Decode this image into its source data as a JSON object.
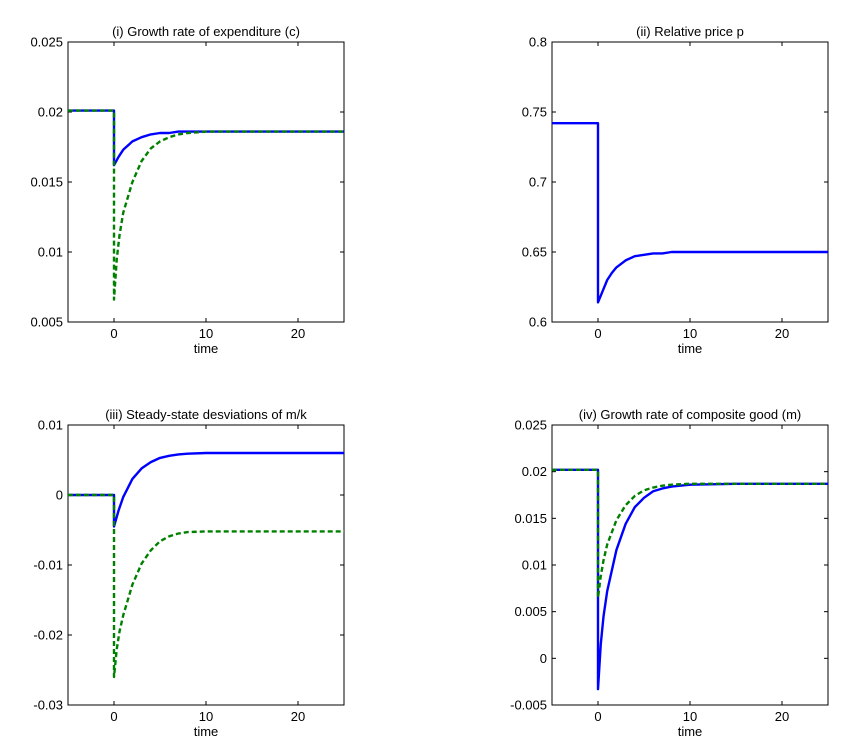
{
  "chart_data": [
    {
      "type": "line",
      "title": "(i) Growth rate of expenditure (c)",
      "xlabel": "time",
      "ylabel": "",
      "xlim": [
        -5,
        25
      ],
      "ylim": [
        0.005,
        0.025
      ],
      "xticks": [
        0,
        10,
        20
      ],
      "yticks": [
        0.005,
        0.01,
        0.015,
        0.02,
        0.025
      ],
      "ytick_labels": [
        "0.005",
        "0.01",
        "0.015",
        "0.02",
        "0.025"
      ],
      "legend": "none",
      "grid": false,
      "series": [
        {
          "color": "#0000ff",
          "style": "solid",
          "x": [
            -5,
            0,
            0,
            0.5,
            1,
            2,
            3,
            4,
            5,
            6,
            7,
            8,
            10,
            15,
            20,
            25
          ],
          "y": [
            0.0201,
            0.0201,
            0.0162,
            0.0168,
            0.0173,
            0.0179,
            0.0182,
            0.0184,
            0.0185,
            0.0185,
            0.0186,
            0.0186,
            0.0186,
            0.0186,
            0.0186,
            0.0186
          ]
        },
        {
          "color": "#008000",
          "style": "dashed",
          "x": [
            -5,
            0,
            0,
            0.3,
            0.6,
            1,
            2,
            3,
            4,
            5,
            6,
            7,
            8,
            10,
            15,
            20,
            25
          ],
          "y": [
            0.0201,
            0.0201,
            0.0066,
            0.0095,
            0.0112,
            0.0128,
            0.015,
            0.0165,
            0.0174,
            0.0179,
            0.0182,
            0.0184,
            0.0185,
            0.0186,
            0.0186,
            0.0186,
            0.0186
          ]
        }
      ]
    },
    {
      "type": "line",
      "title": "(ii) Relative price p",
      "xlabel": "time",
      "ylabel": "",
      "xlim": [
        -5,
        25
      ],
      "ylim": [
        0.6,
        0.8
      ],
      "xticks": [
        0,
        10,
        20
      ],
      "yticks": [
        0.6,
        0.65,
        0.7,
        0.75,
        0.8
      ],
      "ytick_labels": [
        "0.6",
        "0.65",
        "0.7",
        "0.75",
        "0.8"
      ],
      "legend": "none",
      "grid": false,
      "series": [
        {
          "color": "#0000ff",
          "style": "solid",
          "x": [
            -5,
            0,
            0,
            0.5,
            1,
            1.5,
            2,
            3,
            4,
            5,
            6,
            7,
            8,
            10,
            15,
            20,
            25
          ],
          "y": [
            0.742,
            0.742,
            0.614,
            0.622,
            0.63,
            0.635,
            0.639,
            0.644,
            0.647,
            0.648,
            0.649,
            0.649,
            0.65,
            0.65,
            0.65,
            0.65,
            0.65
          ]
        }
      ]
    },
    {
      "type": "line",
      "title": "(iii) Steady-state desviations of m/k",
      "xlabel": "time",
      "ylabel": "",
      "xlim": [
        -5,
        25
      ],
      "ylim": [
        -0.03,
        0.01
      ],
      "xticks": [
        0,
        10,
        20
      ],
      "yticks": [
        -0.03,
        -0.02,
        -0.01,
        0,
        0.01
      ],
      "ytick_labels": [
        "-0.03",
        "-0.02",
        "-0.01",
        "0",
        "0.01"
      ],
      "legend": "none",
      "grid": false,
      "series": [
        {
          "color": "#0000ff",
          "style": "solid",
          "x": [
            -5,
            0,
            0,
            0.5,
            1,
            2,
            3,
            4,
            5,
            6,
            7,
            8,
            10,
            15,
            20,
            25
          ],
          "y": [
            0,
            0,
            -0.0045,
            -0.0022,
            -0.0003,
            0.0023,
            0.0038,
            0.0047,
            0.0053,
            0.0056,
            0.0058,
            0.0059,
            0.006,
            0.006,
            0.006,
            0.006
          ]
        },
        {
          "color": "#008000",
          "style": "dashed",
          "x": [
            -5,
            0,
            0,
            0.3,
            0.6,
            1,
            2,
            3,
            4,
            5,
            6,
            7,
            8,
            10,
            15,
            20,
            25
          ],
          "y": [
            0,
            0,
            -0.026,
            -0.022,
            -0.0195,
            -0.0172,
            -0.0128,
            -0.0098,
            -0.0079,
            -0.0066,
            -0.0059,
            -0.0055,
            -0.0053,
            -0.0052,
            -0.0052,
            -0.0052,
            -0.0052
          ]
        }
      ]
    },
    {
      "type": "line",
      "title": "(iv) Growth rate of composite good (m)",
      "xlabel": "time",
      "ylabel": "",
      "xlim": [
        -5,
        25
      ],
      "ylim": [
        -0.005,
        0.025
      ],
      "xticks": [
        0,
        10,
        20
      ],
      "yticks": [
        -0.005,
        0,
        0.005,
        0.01,
        0.015,
        0.02,
        0.025
      ],
      "ytick_labels": [
        "-0.005",
        "0",
        "0.005",
        "0.01",
        "0.015",
        "0.02",
        "0.025"
      ],
      "legend": "none",
      "grid": false,
      "series": [
        {
          "color": "#0000ff",
          "style": "solid",
          "x": [
            -5,
            0,
            0,
            0.3,
            0.6,
            1,
            2,
            3,
            4,
            5,
            6,
            7,
            8,
            10,
            15,
            20,
            25
          ],
          "y": [
            0.0202,
            0.0202,
            -0.0033,
            0.0015,
            0.0045,
            0.0072,
            0.0116,
            0.0144,
            0.0162,
            0.0172,
            0.0179,
            0.0182,
            0.0184,
            0.0186,
            0.0187,
            0.0187,
            0.0187
          ]
        },
        {
          "color": "#008000",
          "style": "dashed",
          "x": [
            -5,
            0,
            0,
            0.3,
            0.6,
            1,
            2,
            3,
            4,
            5,
            6,
            7,
            8,
            10,
            15,
            20,
            25
          ],
          "y": [
            0.0202,
            0.0202,
            0.0065,
            0.0088,
            0.0105,
            0.0122,
            0.0148,
            0.0164,
            0.0174,
            0.018,
            0.0183,
            0.0185,
            0.0186,
            0.0187,
            0.0187,
            0.0187,
            0.0187
          ]
        }
      ]
    }
  ]
}
